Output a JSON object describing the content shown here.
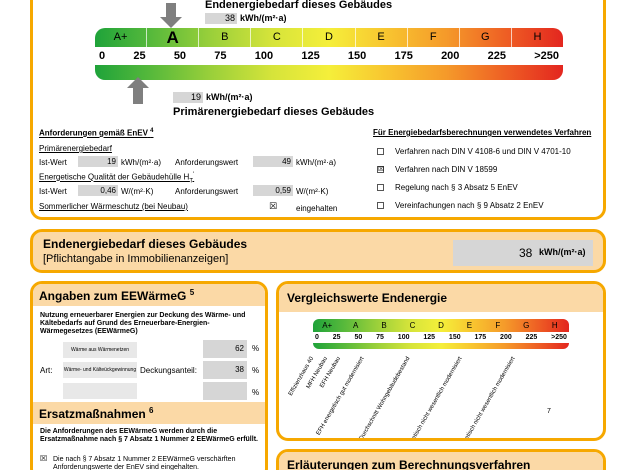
{
  "top": {
    "title_end": "Endenergiebedarf dieses Gebäudes",
    "end_value": "38",
    "end_unit": "kWh/(m²·a)",
    "classes": [
      "A+",
      "A",
      "B",
      "C",
      "D",
      "E",
      "F",
      "G",
      "H"
    ],
    "scale_numbers": [
      "0",
      "25",
      "50",
      "75",
      "100",
      "125",
      "150",
      "175",
      "200",
      "225",
      ">250"
    ],
    "prim_value": "19",
    "prim_unit": "kWh/(m²·a)",
    "title_prim": "Primärenergiebedarf dieses Gebäudes"
  },
  "requirements": {
    "heading": "Anforderungen gemäß EnEV",
    "heading_sup": "4",
    "primary_label": "Primärenergiebedarf",
    "ist_label": "Ist-Wert",
    "ist_value": "19",
    "ist_unit": "kWh/(m²·a)",
    "anf_label": "Anforderungswert",
    "anf_value": "49",
    "anf_unit": "kWh/(m²·a)",
    "envelope_label": "Energetische Qualität der Gebäudehülle H",
    "envelope_sub": "T",
    "envelope_sup": "'",
    "ist2_label": "Ist-Wert",
    "ist2_value": "0,46",
    "ist2_unit": "W/(m²·K)",
    "anf2_label": "Anforderungswert",
    "anf2_value": "0,59",
    "anf2_unit": "W/(m²·K)",
    "summer_label": "Sommerlicher Wärmeschutz (bei Neubau)",
    "summer_check": "☒",
    "summer_status": "eingehalten"
  },
  "methods": {
    "heading": "Für Energiebedarfsberechnungen verwendetes Verfahren",
    "items": [
      {
        "label": "Verfahren nach DIN V 4108-6 und DIN V 4701-10",
        "checked": ""
      },
      {
        "label": "Verfahren nach DIN V 18599",
        "checked": "☒"
      },
      {
        "label": "Regelung nach § 3 Absatz 5 EnEV",
        "checked": ""
      },
      {
        "label": "Vereinfachungen nach § 9 Absatz 2 EnEV",
        "checked": ""
      }
    ]
  },
  "mid": {
    "title": "Endenergiebedarf dieses Gebäudes",
    "subtitle": "[Pflichtangabe in Immobilienanzeigen]",
    "value": "38",
    "unit": "kWh/(m²·a)"
  },
  "eewg": {
    "title": "Angaben zum EEWärmeG",
    "title_sup": "5",
    "desc": "Nutzung erneuerbarer Energien zur Deckung des Wärme- und Kältebedarfs auf Grund des Erneuerbare-Energien-Wärmegesetzes (EEWärmeG)",
    "art_label": "Art:",
    "deckung_label": "Deckungsanteil:",
    "rows": [
      {
        "name": "Wärme aus Wärmenetzen",
        "value": "62",
        "unit": "%"
      },
      {
        "name": "Wärme- und Kälteückgewinnung",
        "value": "38",
        "unit": "%"
      },
      {
        "name": "",
        "value": "",
        "unit": "%"
      }
    ],
    "ersatz_title": "Ersatzmaßnahmen",
    "ersatz_sup": "6",
    "ersatz_desc": "Die Anforderungen des EEWärmeG werden durch die Ersatzmaßnahme nach § 7 Absatz 1 Nummer 2 EEWärmeG erfüllt.",
    "ersatz_check": "☒",
    "ersatz_item": "Die nach § 7 Absatz 1 Nummer 2 EEWärmeG verschärften Anforderungswerte der EnEV sind eingehalten."
  },
  "compare": {
    "title": "Vergleichswerte Endenergie",
    "classes": [
      "A+",
      "A",
      "B",
      "C",
      "D",
      "E",
      "F",
      "G",
      "H"
    ],
    "scale_numbers": [
      "0",
      "25",
      "50",
      "75",
      "100",
      "125",
      "150",
      "175",
      "200",
      "225",
      ">250"
    ],
    "labels": [
      "Effizienzhaus 40",
      "MFH Neubau",
      "EFH Neubau",
      "EFH energetisch gut modernisiert",
      "Durchschnitt Wohngebäudebestand",
      "MFH energetisch nicht wesentlich modernisiert",
      "EFH energetisch nicht wesentlich modernisiert"
    ],
    "footnote": "7"
  },
  "explain": {
    "title": "Erläuterungen zum Berechnungsverfahren"
  }
}
